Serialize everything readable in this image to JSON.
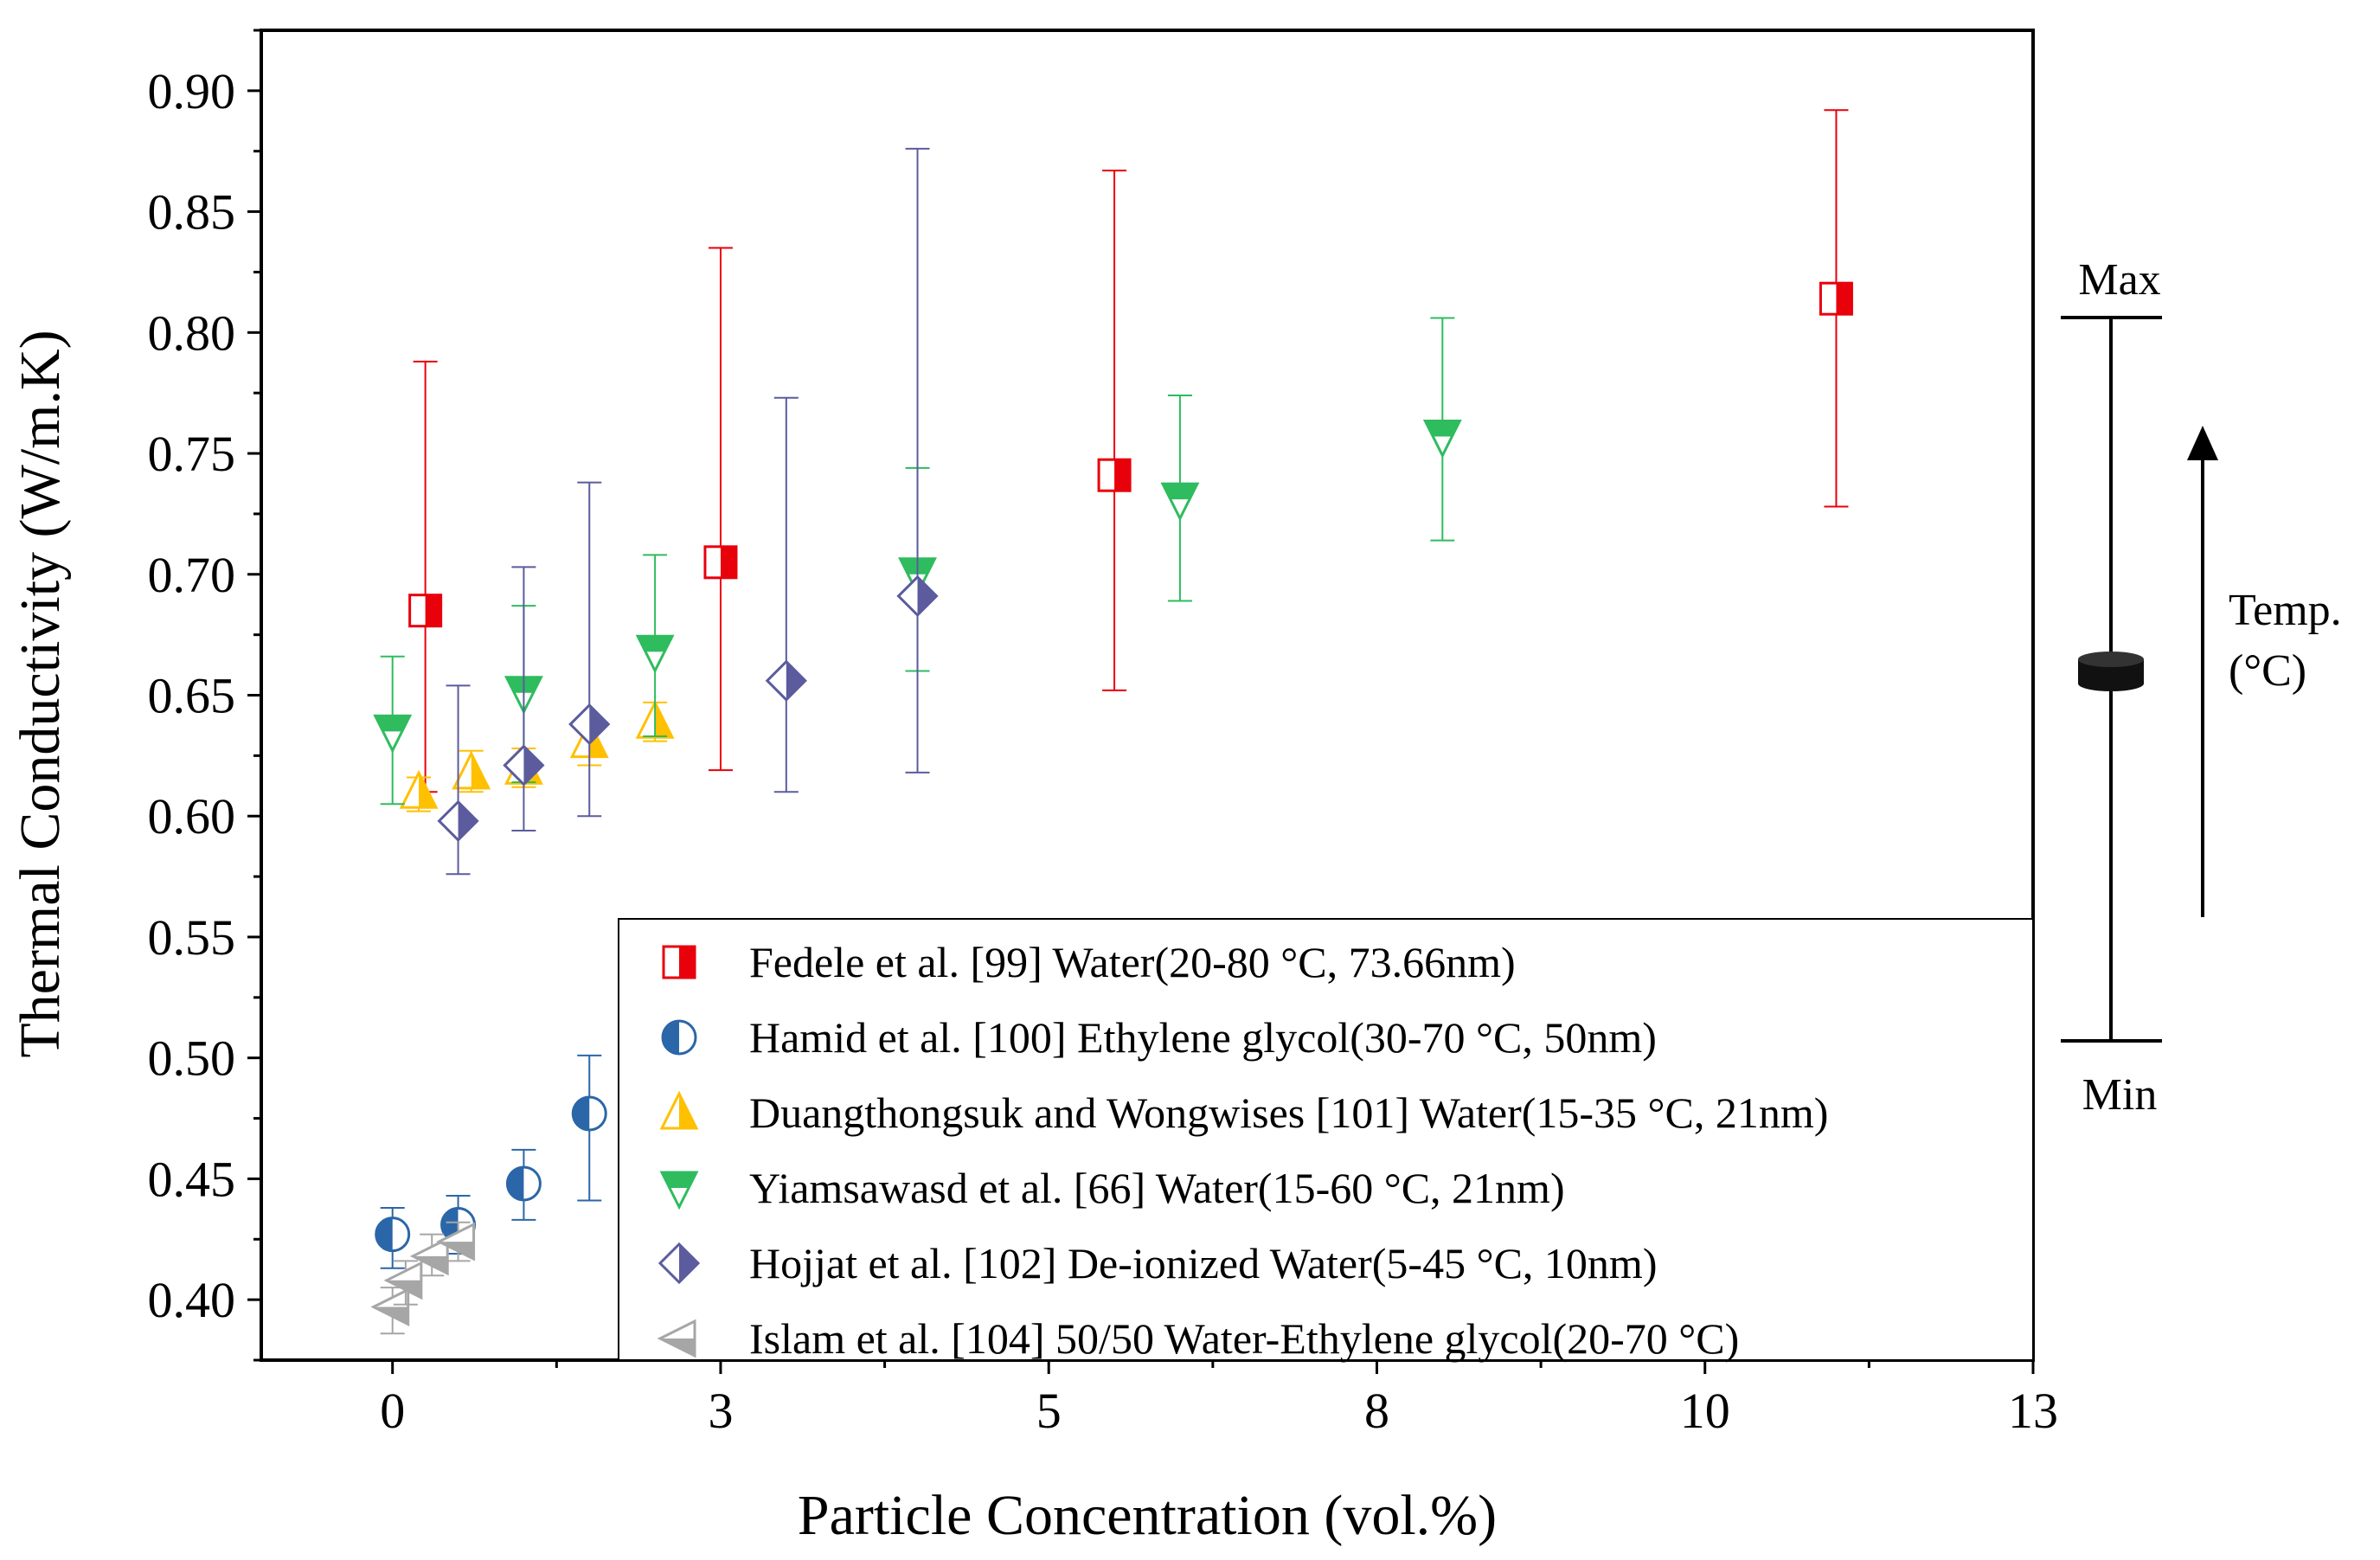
{
  "chart_data": {
    "type": "scatter",
    "title": "",
    "xlabel": "Particle Concentration (vol.%)",
    "ylabel": "Thermal Conductivity (W/m.K)",
    "xlim": [
      -1.0,
      12.5
    ],
    "ylim": [
      0.375,
      0.925
    ],
    "x_ticks": [
      0,
      2.5,
      5,
      7.5,
      10,
      12.5
    ],
    "x_tick_labels": [
      "0",
      "3",
      "5",
      "8",
      "10",
      "13"
    ],
    "y_ticks": [
      0.4,
      0.45,
      0.5,
      0.55,
      0.6,
      0.65,
      0.7,
      0.75,
      0.8,
      0.85,
      0.9
    ],
    "y_tick_labels": [
      "0.40",
      "0.45",
      "0.50",
      "0.55",
      "0.60",
      "0.65",
      "0.70",
      "0.75",
      "0.80",
      "0.85",
      "0.90"
    ],
    "legend_position": "bottom-right inside plot",
    "series": [
      {
        "name": "Fedele et al. [99] Water(20-80 °C, 73.66nm)",
        "marker": "square-half",
        "color": "#e8000b",
        "points": [
          {
            "x": 0.25,
            "y": 0.685,
            "ymin": 0.61,
            "ymax": 0.788
          },
          {
            "x": 2.5,
            "y": 0.705,
            "ymin": 0.619,
            "ymax": 0.835
          },
          {
            "x": 5.5,
            "y": 0.741,
            "ymin": 0.652,
            "ymax": 0.867
          },
          {
            "x": 11.0,
            "y": 0.814,
            "ymin": 0.728,
            "ymax": 0.892
          }
        ]
      },
      {
        "name": "Hamid et al. [100] Ethylene glycol(30-70 °C, 50nm)",
        "marker": "circle-half",
        "color": "#2b66a8",
        "points": [
          {
            "x": 0.0,
            "y": 0.427,
            "ymin": 0.413,
            "ymax": 0.438
          },
          {
            "x": 0.5,
            "y": 0.431,
            "ymin": 0.419,
            "ymax": 0.443
          },
          {
            "x": 1.0,
            "y": 0.448,
            "ymin": 0.433,
            "ymax": 0.462
          },
          {
            "x": 1.5,
            "y": 0.477,
            "ymin": 0.441,
            "ymax": 0.501
          }
        ]
      },
      {
        "name": "Duangthongsuk and Wongwises [101] Water(15-35 °C, 21nm)",
        "marker": "triangle-up-half",
        "color": "#ffc000",
        "points": [
          {
            "x": 0.2,
            "y": 0.61,
            "ymin": 0.602,
            "ymax": 0.616
          },
          {
            "x": 0.6,
            "y": 0.618,
            "ymin": 0.61,
            "ymax": 0.627
          },
          {
            "x": 1.0,
            "y": 0.62,
            "ymin": 0.612,
            "ymax": 0.628
          },
          {
            "x": 1.5,
            "y": 0.631,
            "ymin": 0.621,
            "ymax": 0.641
          },
          {
            "x": 2.0,
            "y": 0.639,
            "ymin": 0.631,
            "ymax": 0.647
          }
        ]
      },
      {
        "name": "Yiamsawasd et al. [66] Water(15-60 °C, 21nm)",
        "marker": "triangle-down-half",
        "color": "#2ebc5e",
        "points": [
          {
            "x": 0.0,
            "y": 0.635,
            "ymin": 0.605,
            "ymax": 0.666
          },
          {
            "x": 1.0,
            "y": 0.651,
            "ymin": 0.614,
            "ymax": 0.687
          },
          {
            "x": 2.0,
            "y": 0.668,
            "ymin": 0.633,
            "ymax": 0.708
          },
          {
            "x": 4.0,
            "y": 0.7,
            "ymin": 0.66,
            "ymax": 0.744
          },
          {
            "x": 6.0,
            "y": 0.731,
            "ymin": 0.689,
            "ymax": 0.774
          },
          {
            "x": 8.0,
            "y": 0.757,
            "ymin": 0.714,
            "ymax": 0.806
          }
        ]
      },
      {
        "name": "Hojjat et al. [102] De-ionized Water(5-45 °C, 10nm)",
        "marker": "diamond-half",
        "color": "#5b5b9e",
        "points": [
          {
            "x": 0.5,
            "y": 0.598,
            "ymin": 0.576,
            "ymax": 0.654
          },
          {
            "x": 1.0,
            "y": 0.621,
            "ymin": 0.594,
            "ymax": 0.703
          },
          {
            "x": 1.5,
            "y": 0.638,
            "ymin": 0.6,
            "ymax": 0.738
          },
          {
            "x": 3.0,
            "y": 0.656,
            "ymin": 0.61,
            "ymax": 0.773
          },
          {
            "x": 4.0,
            "y": 0.691,
            "ymin": 0.618,
            "ymax": 0.876
          }
        ]
      },
      {
        "name": "Islam et al. [104] 50/50 Water-Ethylene glycol(20-70 °C)",
        "marker": "triangle-left-half",
        "color": "#a6a6a6",
        "points": [
          {
            "x": 0.0,
            "y": 0.397,
            "ymin": 0.386,
            "ymax": 0.405
          },
          {
            "x": 0.1,
            "y": 0.408,
            "ymin": 0.398,
            "ymax": 0.416
          },
          {
            "x": 0.3,
            "y": 0.418,
            "ymin": 0.41,
            "ymax": 0.427
          },
          {
            "x": 0.5,
            "y": 0.424,
            "ymin": 0.416,
            "ymax": 0.432
          }
        ]
      }
    ],
    "temperature_scale": {
      "max_label": "Max",
      "min_label": "Min",
      "axis_label_line1": "Temp.",
      "axis_label_line2": "(°C)"
    }
  }
}
